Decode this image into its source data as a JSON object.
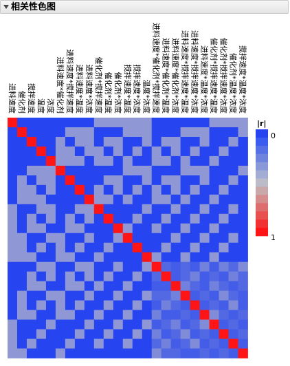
{
  "panel": {
    "title": "相关性色图"
  },
  "chart_data": {
    "type": "heatmap",
    "variables": [
      "进料速度",
      "催化剂",
      "搅拌速度",
      "温度",
      "浓度",
      "进料速度*催化剂",
      "进料速度*搅拌速度",
      "进料速度*温度",
      "进料速度*浓度",
      "催化剂*搅拌速度",
      "催化剂*温度",
      "催化剂*浓度",
      "搅拌速度*温度",
      "搅拌速度*浓度",
      "温度*浓度",
      "进料速度*催化剂*搅拌速度",
      "进料速度*催化剂*温度",
      "进料速度*催化剂*浓度",
      "进料速度*搅拌速度*温度",
      "进料速度*搅拌速度*浓度",
      "进料速度*温度*浓度",
      "催化剂*搅拌速度*温度",
      "催化剂*搅拌速度*浓度",
      "催化剂*温度*浓度",
      "搅拌速度*温度*浓度"
    ],
    "abs_r": [
      [
        1,
        0,
        0,
        0,
        0,
        0,
        0,
        0,
        0,
        0.35,
        0.35,
        0.35,
        0.35,
        0.35,
        0.35,
        0,
        0,
        0,
        0,
        0,
        0,
        0.35,
        0.35,
        0.35,
        0.35
      ],
      [
        0,
        1,
        0,
        0,
        0,
        0,
        0.35,
        0.35,
        0.35,
        0,
        0,
        0,
        0.35,
        0.35,
        0.35,
        0,
        0,
        0,
        0.35,
        0.35,
        0.35,
        0,
        0,
        0,
        0.35
      ],
      [
        0,
        0,
        1,
        0,
        0,
        0.35,
        0,
        0.35,
        0.35,
        0,
        0.35,
        0.35,
        0,
        0,
        0.35,
        0,
        0.35,
        0.35,
        0,
        0,
        0.35,
        0,
        0,
        0.35,
        0
      ],
      [
        0,
        0,
        0,
        1,
        0,
        0.35,
        0.35,
        0,
        0.35,
        0.35,
        0,
        0.35,
        0,
        0.35,
        0,
        0.35,
        0,
        0.35,
        0,
        0.35,
        0,
        0,
        0.35,
        0,
        0
      ],
      [
        0,
        0,
        0,
        0,
        1,
        0.35,
        0.35,
        0.35,
        0,
        0.35,
        0.35,
        0,
        0.35,
        0,
        0,
        0.35,
        0.35,
        0,
        0.35,
        0,
        0,
        0.35,
        0,
        0,
        0
      ],
      [
        0,
        0,
        0.35,
        0.35,
        0.35,
        1,
        0,
        0,
        0,
        0,
        0,
        0,
        0.35,
        0.35,
        0.35,
        0,
        0,
        0,
        0.35,
        0.35,
        0.35,
        0,
        0,
        0,
        0.35
      ],
      [
        0,
        0.35,
        0,
        0.35,
        0.35,
        0,
        1,
        0,
        0,
        0,
        0.35,
        0.35,
        0,
        0,
        0.35,
        0,
        0.35,
        0.35,
        0,
        0,
        0.35,
        0,
        0,
        0.35,
        0
      ],
      [
        0,
        0.35,
        0.35,
        0,
        0.35,
        0,
        0,
        1,
        0,
        0.35,
        0,
        0.35,
        0,
        0.35,
        0,
        0.35,
        0,
        0.35,
        0,
        0.35,
        0,
        0,
        0.35,
        0,
        0
      ],
      [
        0,
        0.35,
        0.35,
        0.35,
        0,
        0,
        0,
        0,
        1,
        0.35,
        0.35,
        0,
        0.35,
        0,
        0,
        0.35,
        0.35,
        0,
        0.35,
        0,
        0,
        0.35,
        0,
        0,
        0
      ],
      [
        0.35,
        0,
        0,
        0.35,
        0.35,
        0,
        0,
        0.35,
        0.35,
        1,
        0,
        0,
        0,
        0,
        0.35,
        0,
        0,
        0.35,
        0,
        0,
        0.35,
        0,
        0,
        0.35,
        0
      ],
      [
        0.35,
        0,
        0.35,
        0,
        0.35,
        0,
        0.35,
        0,
        0.35,
        0,
        1,
        0,
        0,
        0.35,
        0,
        0,
        0.35,
        0,
        0,
        0.35,
        0,
        0,
        0.35,
        0,
        0
      ],
      [
        0.35,
        0,
        0.35,
        0.35,
        0,
        0,
        0.35,
        0.35,
        0,
        0,
        0,
        1,
        0.35,
        0,
        0,
        0.35,
        0,
        0,
        0.35,
        0,
        0,
        0.35,
        0,
        0,
        0
      ],
      [
        0.35,
        0.35,
        0,
        0,
        0.35,
        0.35,
        0,
        0,
        0.35,
        0,
        0,
        0.35,
        1,
        0,
        0,
        0,
        0,
        0.35,
        0,
        0,
        0.35,
        0,
        0,
        0.35,
        0
      ],
      [
        0.35,
        0.35,
        0,
        0.35,
        0,
        0.35,
        0,
        0.35,
        0,
        0,
        0.35,
        0,
        0,
        1,
        0,
        0,
        0.35,
        0,
        0,
        0.35,
        0,
        0,
        0.35,
        0,
        0
      ],
      [
        0.35,
        0.35,
        0.35,
        0,
        0,
        0.35,
        0.35,
        0,
        0,
        0.35,
        0,
        0,
        0,
        0,
        1,
        0.35,
        0,
        0,
        0.35,
        0,
        0,
        0.35,
        0,
        0,
        0
      ],
      [
        0,
        0,
        0,
        0.35,
        0.35,
        0,
        0,
        0.35,
        0.35,
        0,
        0,
        0.35,
        0,
        0,
        0.35,
        1,
        0.15,
        0.1,
        0.15,
        0.1,
        0.25,
        0.1,
        0.25,
        0.15,
        0.3
      ],
      [
        0,
        0,
        0.35,
        0,
        0.35,
        0,
        0.35,
        0,
        0.35,
        0,
        0.35,
        0,
        0,
        0.35,
        0,
        0.15,
        1,
        0.1,
        0.15,
        0.25,
        0.1,
        0.15,
        0.1,
        0.25,
        0.15
      ],
      [
        0,
        0,
        0.35,
        0.35,
        0,
        0,
        0.35,
        0.35,
        0,
        0.35,
        0,
        0,
        0.35,
        0,
        0,
        0.1,
        0.1,
        1,
        0.25,
        0.15,
        0.1,
        0.25,
        0.15,
        0.1,
        0.15
      ],
      [
        0,
        0.35,
        0,
        0,
        0.35,
        0.35,
        0,
        0,
        0.35,
        0,
        0,
        0.35,
        0,
        0,
        0.35,
        0.15,
        0.15,
        0.25,
        1,
        0.1,
        0.15,
        0.1,
        0.3,
        0.15,
        0.1
      ],
      [
        0,
        0.35,
        0,
        0.35,
        0,
        0.35,
        0,
        0.35,
        0,
        0,
        0.35,
        0,
        0,
        0.35,
        0,
        0.1,
        0.25,
        0.15,
        0.1,
        1,
        0.1,
        0.15,
        0.1,
        0.3,
        0.1
      ],
      [
        0,
        0.35,
        0.35,
        0,
        0,
        0.35,
        0.35,
        0,
        0,
        0.35,
        0,
        0,
        0.35,
        0,
        0,
        0.25,
        0.1,
        0.1,
        0.15,
        0.1,
        1,
        0.3,
        0.15,
        0.1,
        0.15
      ],
      [
        0.35,
        0,
        0,
        0,
        0.35,
        0,
        0,
        0,
        0.35,
        0,
        0,
        0.35,
        0,
        0,
        0.35,
        0.1,
        0.15,
        0.25,
        0.1,
        0.15,
        0.3,
        1,
        0.1,
        0.15,
        0.1
      ],
      [
        0.35,
        0,
        0,
        0.35,
        0,
        0,
        0,
        0.35,
        0,
        0,
        0.35,
        0,
        0,
        0.35,
        0,
        0.25,
        0.1,
        0.15,
        0.3,
        0.1,
        0.15,
        0.1,
        1,
        0.1,
        0.15
      ],
      [
        0.35,
        0,
        0.35,
        0,
        0,
        0,
        0.35,
        0,
        0,
        0.35,
        0,
        0,
        0.35,
        0,
        0,
        0.15,
        0.25,
        0.1,
        0.15,
        0.3,
        0.1,
        0.15,
        0.1,
        1,
        0.1
      ],
      [
        0.35,
        0.35,
        0,
        0,
        0,
        0.35,
        0,
        0,
        0,
        0,
        0,
        0,
        0,
        0,
        0,
        0.3,
        0.15,
        0.15,
        0.1,
        0.1,
        0.15,
        0.1,
        0.15,
        0.1,
        1
      ]
    ],
    "legend": {
      "title": "|r|",
      "min_label": "0",
      "max_label": "1",
      "colors": [
        "#2645f0",
        "#3a5cf0",
        "#5570e6",
        "#6e83de",
        "#8898d8",
        "#a3acd2",
        "#bcbcc8",
        "#c8a8a8",
        "#d48c8c",
        "#de6e6e",
        "#e85050",
        "#f23232",
        "#ff1515"
      ]
    },
    "color_low": "#2645f0",
    "color_mid": "#bcbcc8",
    "color_high": "#ff1515"
  }
}
